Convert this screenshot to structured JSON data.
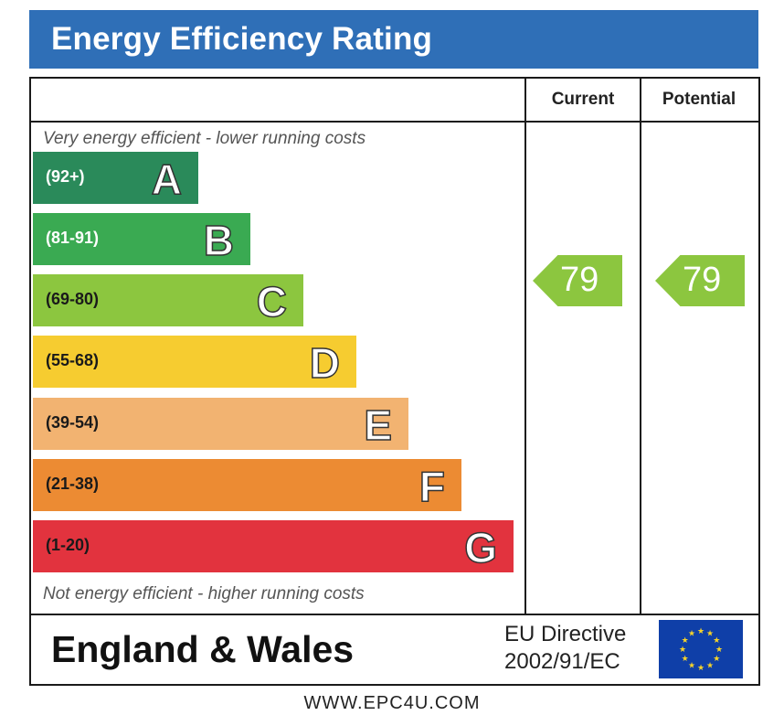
{
  "title": "Energy Efficiency Rating",
  "columns": {
    "current": "Current",
    "potential": "Potential"
  },
  "top_note": "Very energy efficient - lower running costs",
  "bottom_note": "Not energy efficient - higher running costs",
  "chart_data": {
    "type": "bar",
    "title": "Energy Efficiency Rating",
    "categories": [
      "A",
      "B",
      "C",
      "D",
      "E",
      "F",
      "G"
    ],
    "bands": [
      {
        "letter": "A",
        "range": "(92+)",
        "color": "#2a8a5a",
        "text_color": "#ffffff"
      },
      {
        "letter": "B",
        "range": "(81-91)",
        "color": "#3aaa52",
        "text_color": "#ffffff"
      },
      {
        "letter": "C",
        "range": "(69-80)",
        "color": "#8cc63f",
        "text_color": "#1a1a1a"
      },
      {
        "letter": "D",
        "range": "(55-68)",
        "color": "#f6cc30",
        "text_color": "#1a1a1a"
      },
      {
        "letter": "E",
        "range": "(39-54)",
        "color": "#f2b371",
        "text_color": "#1a1a1a"
      },
      {
        "letter": "F",
        "range": "(21-38)",
        "color": "#ec8b33",
        "text_color": "#1a1a1a"
      },
      {
        "letter": "G",
        "range": "(1-20)",
        "color": "#e2333e",
        "text_color": "#1a1a1a"
      }
    ],
    "current": 79,
    "potential": 79,
    "rating_color": "#8cc63f"
  },
  "footer": {
    "region": "England & Wales",
    "eu_line1": "EU Directive",
    "eu_line2": "2002/91/EC",
    "flag_icon": "eu-flag-icon"
  },
  "website": "WWW.EPC4U.COM"
}
